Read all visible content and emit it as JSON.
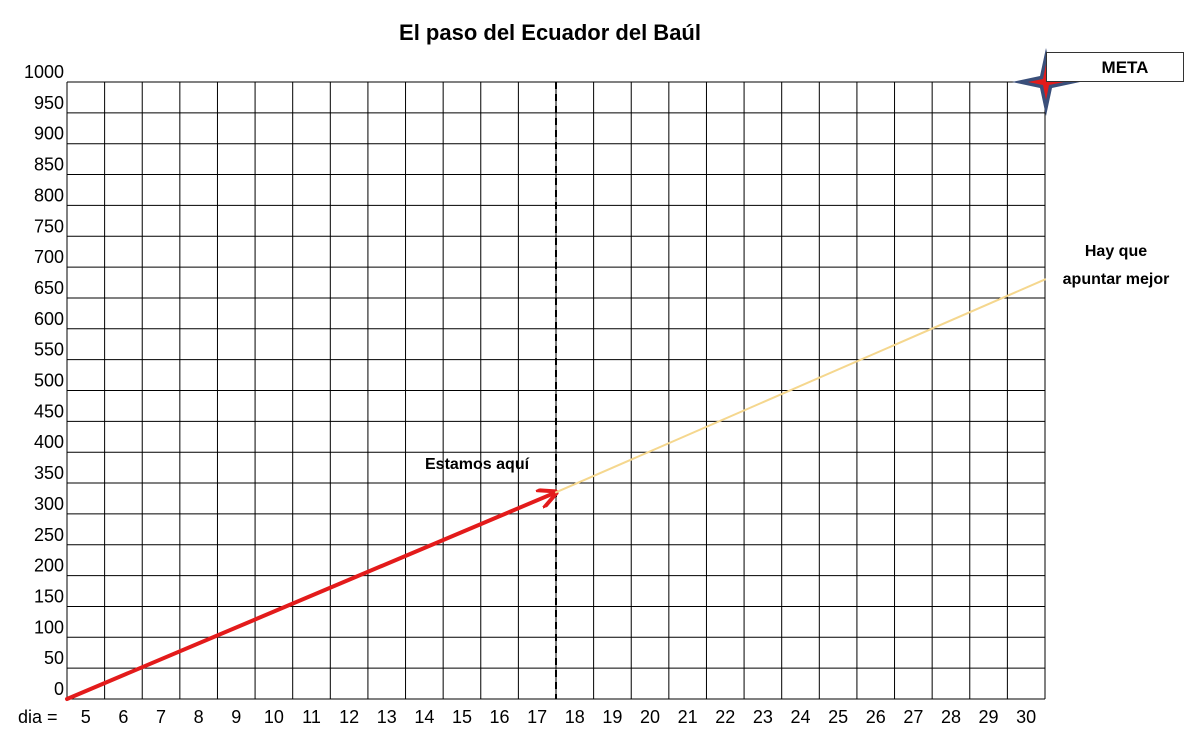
{
  "chart_data": {
    "type": "line",
    "title": "El paso del Ecuador del Baúl",
    "x_prefix_label": "dia =",
    "x_categories": [
      5,
      6,
      7,
      8,
      9,
      10,
      11,
      12,
      13,
      14,
      15,
      16,
      17,
      18,
      19,
      20,
      21,
      22,
      23,
      24,
      25,
      26,
      27,
      28,
      29,
      30
    ],
    "y_ticks": [
      0,
      50,
      100,
      150,
      200,
      250,
      300,
      350,
      400,
      450,
      500,
      550,
      600,
      650,
      700,
      750,
      800,
      850,
      900,
      950,
      1000
    ],
    "ylim": [
      0,
      1000
    ],
    "grid": true,
    "series": [
      {
        "role": "actual",
        "color": "#e31b1b",
        "arrow": true,
        "points": [
          [
            4.5,
            0
          ],
          [
            17.5,
            335
          ]
        ]
      },
      {
        "role": "projection",
        "color": "#f5d78e",
        "points": [
          [
            17.5,
            335
          ],
          [
            30.5,
            680
          ]
        ]
      }
    ],
    "today_marker": {
      "x": 17.5,
      "style": "dashed",
      "label": "Estamos aquí"
    },
    "goal": {
      "label": "META",
      "y": 1000,
      "icon": "compass-star-icon"
    },
    "annotation_right": [
      "Hay que",
      "apuntar mejor"
    ]
  }
}
